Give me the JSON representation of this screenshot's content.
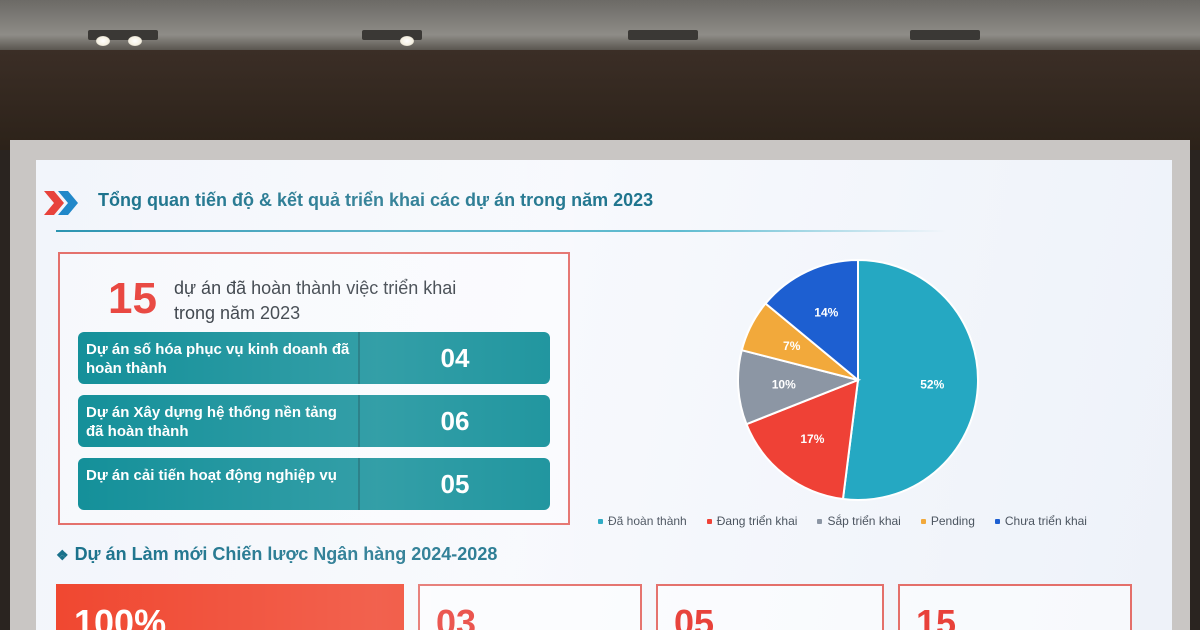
{
  "slide": {
    "title": "Tổng quan tiến độ & kết quả triển khai các dự án trong năm 2023"
  },
  "summary": {
    "count": "15",
    "caption": "dự án đã hoàn thành việc triển khai trong năm 2023",
    "rows": [
      {
        "label": "Dự án số hóa phục vụ kinh doanh đã hoàn thành",
        "value": "04"
      },
      {
        "label": "Dự án Xây dựng hệ thống nền tảng đã hoàn thành",
        "value": "06"
      },
      {
        "label": "Dự án cải tiến hoạt động nghiệp vụ",
        "value": "05"
      }
    ]
  },
  "section2": {
    "heading": "Dự án Làm mới Chiến lược Ngân hàng 2024-2028",
    "stats": [
      "100%",
      "03",
      "05",
      "15"
    ]
  },
  "colors": {
    "accent": "#17708a",
    "red": "#e8413a",
    "teal_row": "#108e98"
  },
  "chart_data": {
    "type": "pie",
    "slices": [
      {
        "name": "Đã hoàn thành",
        "value": 52,
        "label": "52%",
        "color": "#25a8c2"
      },
      {
        "name": "Đang triển khai",
        "value": 17,
        "label": "17%",
        "color": "#ef4136"
      },
      {
        "name": "Sắp triển khai",
        "value": 10,
        "label": "10%",
        "color": "#8c96a4"
      },
      {
        "name": "Pending",
        "value": 7,
        "label": "7%",
        "color": "#f2a93b"
      },
      {
        "name": "Chưa triển khai",
        "value": 14,
        "label": "14%",
        "color": "#1d5fd1"
      }
    ],
    "legend": [
      "Đã hoàn thành",
      "Đang triển khai",
      "Sắp triển khai",
      "Pending",
      "Chưa triển khai"
    ],
    "legend_placement": "bottom"
  }
}
